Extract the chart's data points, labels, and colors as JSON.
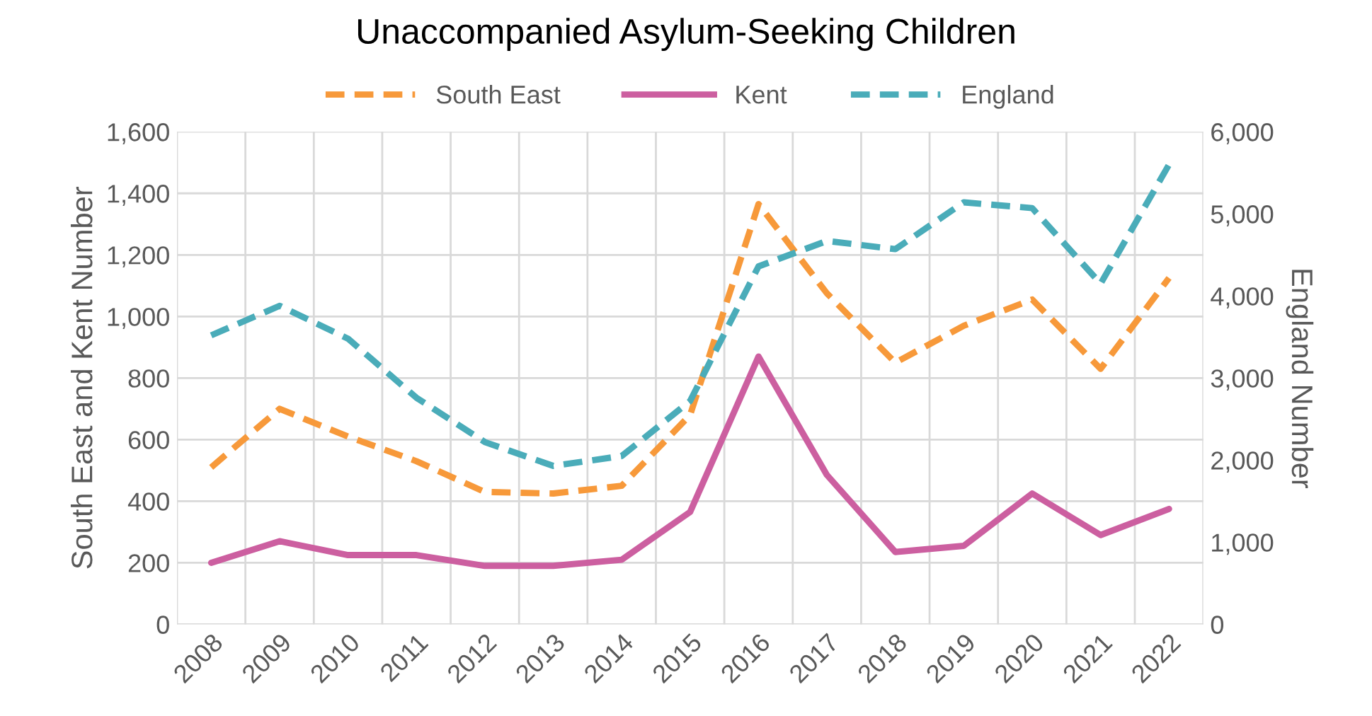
{
  "chart_data": {
    "type": "line",
    "title": "Unaccompanied Asylum-Seeking Children",
    "categories": [
      "2008",
      "2009",
      "2010",
      "2011",
      "2012",
      "2013",
      "2014",
      "2015",
      "2016",
      "2017",
      "2018",
      "2019",
      "2020",
      "2021",
      "2022"
    ],
    "series": [
      {
        "name": "South East",
        "color": "#f7993a",
        "line_style": "dashed",
        "values": [
          510,
          700,
          610,
          530,
          430,
          425,
          450,
          680,
          1365,
          1075,
          850,
          970,
          1055,
          830,
          1125
        ]
      },
      {
        "name": "Kent",
        "color": "#cc5fa0",
        "line_style": "solid",
        "values": [
          200,
          270,
          225,
          225,
          190,
          190,
          210,
          365,
          870,
          485,
          235,
          255,
          425,
          290,
          375
        ]
      },
      {
        "name": "England",
        "color": "#4aacb9",
        "line_style": "dashed",
        "axis": "y2",
        "values": [
          3520,
          3880,
          3480,
          2760,
          2220,
          1930,
          2050,
          2720,
          4360,
          4670,
          4570,
          5140,
          5070,
          4150,
          5600
        ]
      }
    ],
    "ylabel": "South East and Kent Number",
    "y2label": "England Number",
    "ylim": [
      0,
      1600
    ],
    "yticks": [
      {
        "value": 0,
        "label": "0"
      },
      {
        "value": 200,
        "label": "200"
      },
      {
        "value": 400,
        "label": "400"
      },
      {
        "value": 600,
        "label": "600"
      },
      {
        "value": 800,
        "label": "800"
      },
      {
        "value": 1000,
        "label": "1,000"
      },
      {
        "value": 1200,
        "label": "1,200"
      },
      {
        "value": 1400,
        "label": "1,400"
      },
      {
        "value": 1600,
        "label": "1,600"
      }
    ],
    "y2lim": [
      0,
      6000
    ],
    "y2ticks": [
      {
        "value": 0,
        "label": "0"
      },
      {
        "value": 1000,
        "label": "1,000"
      },
      {
        "value": 2000,
        "label": "2,000"
      },
      {
        "value": 3000,
        "label": "3,000"
      },
      {
        "value": 4000,
        "label": "4,000"
      },
      {
        "value": 5000,
        "label": "5,000"
      },
      {
        "value": 6000,
        "label": "6,000"
      }
    ],
    "grid": true,
    "legend": "top"
  }
}
